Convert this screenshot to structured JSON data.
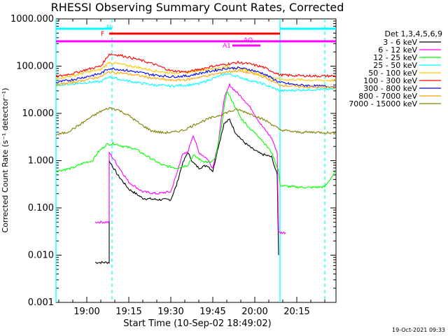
{
  "chart_data": {
    "type": "line",
    "title": "RHESSI Observing Summary Count Rates, Corrected",
    "xlabel": "Start Time (10-Sep-02 18:49:02)",
    "ylabel": "Corrected Count Rate (s⁻¹ detector⁻¹)",
    "yscale": "log",
    "ylim": [
      0.001,
      1000
    ],
    "xlim": [
      "18:49",
      "20:26"
    ],
    "y_ticks": [
      "1000.000",
      "100.000",
      "10.000",
      "1.000",
      "0.100",
      "0.010",
      "0.001"
    ],
    "x_ticks": [
      "19:00",
      "19:15",
      "19:30",
      "19:45",
      "20:00",
      "20:15"
    ],
    "x_tick_minutes": [
      660,
      675,
      690,
      705,
      720,
      735
    ],
    "legend_title": "Det 1,3,4,5,6,9",
    "stamp": "19-Oct-2021 09:33",
    "annotations": {
      "N": "N",
      "F": "F",
      "A1": "A1",
      "AQ": "AQ"
    },
    "spans": {
      "N": [
        [
          649,
          669
        ],
        [
          729,
          749
        ]
      ],
      "F": [
        [
          668,
          690
        ],
        [
          690,
          729
        ]
      ],
      "A_outer": [
        [
          649,
          749
        ]
      ],
      "AQ": [
        [
          712,
          720
        ],
        [
          717,
          722
        ]
      ]
    },
    "vlines": {
      "solid": [
        649,
        729
      ],
      "dashed": [
        669,
        745
      ]
    },
    "series": [
      {
        "name": "3 - 6 keV",
        "color": "#000000",
        "points": [
          [
            663,
            0.007
          ],
          [
            668,
            0.007
          ],
          [
            668,
            1.0
          ],
          [
            671,
            0.5
          ],
          [
            675,
            0.25
          ],
          [
            680,
            0.16
          ],
          [
            685,
            0.15
          ],
          [
            690,
            0.15
          ],
          [
            692,
            0.3
          ],
          [
            694,
            0.8
          ],
          [
            696,
            1.5
          ],
          [
            698,
            0.9
          ],
          [
            700,
            0.7
          ],
          [
            703,
            0.8
          ],
          [
            705,
            0.6
          ],
          [
            707,
            2
          ],
          [
            709,
            6
          ],
          [
            711,
            7.5
          ],
          [
            713,
            4
          ],
          [
            716,
            2.5
          ],
          [
            719,
            1.8
          ],
          [
            722,
            1.4
          ],
          [
            726,
            1.2
          ],
          [
            728,
            0.5
          ],
          [
            728.5,
            0.01
          ]
        ]
      },
      {
        "name": "6 - 12 keV",
        "color": "#ff00ff",
        "points": [
          [
            663,
            0.05
          ],
          [
            668,
            0.05
          ],
          [
            668,
            1.5
          ],
          [
            671,
            0.8
          ],
          [
            675,
            0.35
          ],
          [
            680,
            0.22
          ],
          [
            685,
            0.2
          ],
          [
            690,
            0.22
          ],
          [
            692,
            0.5
          ],
          [
            694,
            1.3
          ],
          [
            696,
            1.5
          ],
          [
            698,
            3.5
          ],
          [
            700,
            1.5
          ],
          [
            703,
            1.1
          ],
          [
            705,
            0.7
          ],
          [
            707,
            2.5
          ],
          [
            709,
            20
          ],
          [
            711,
            40
          ],
          [
            713,
            30
          ],
          [
            716,
            20
          ],
          [
            719,
            12
          ],
          [
            722,
            6
          ],
          [
            726,
            3
          ],
          [
            728,
            1.5
          ],
          [
            728.5,
            0.03
          ],
          [
            731,
            0.03
          ]
        ]
      },
      {
        "name": "12 - 25 keV",
        "color": "#00ff00",
        "points": [
          [
            649,
            0.6
          ],
          [
            655,
            0.7
          ],
          [
            659,
            0.9
          ],
          [
            662,
            1.0
          ],
          [
            664,
            1.5
          ],
          [
            667,
            2.2
          ],
          [
            670,
            2.3
          ],
          [
            673,
            2.0
          ],
          [
            677,
            1.8
          ],
          [
            682,
            1.2
          ],
          [
            687,
            0.8
          ],
          [
            692,
            0.7
          ],
          [
            696,
            0.8
          ],
          [
            698,
            1.3
          ],
          [
            701,
            1.0
          ],
          [
            704,
            0.9
          ],
          [
            706,
            1.1
          ],
          [
            708,
            5
          ],
          [
            710,
            30
          ],
          [
            712,
            18
          ],
          [
            715,
            8
          ],
          [
            718,
            5
          ],
          [
            722,
            3
          ],
          [
            726,
            1.5
          ],
          [
            728.5,
            0.6
          ],
          [
            729,
            0.3
          ],
          [
            733,
            0.28
          ],
          [
            740,
            0.27
          ],
          [
            745,
            0.28
          ],
          [
            749,
            0.6
          ]
        ]
      },
      {
        "name": "25 - 50 keV",
        "color": "#00ffff",
        "points": [
          [
            649,
            40
          ],
          [
            655,
            42
          ],
          [
            660,
            45
          ],
          [
            665,
            47
          ],
          [
            668,
            60
          ],
          [
            672,
            52
          ],
          [
            678,
            45
          ],
          [
            684,
            40
          ],
          [
            690,
            38
          ],
          [
            696,
            40
          ],
          [
            700,
            42
          ],
          [
            705,
            55
          ],
          [
            710,
            70
          ],
          [
            714,
            60
          ],
          [
            718,
            50
          ],
          [
            723,
            42
          ],
          [
            729,
            30
          ],
          [
            735,
            31
          ],
          [
            742,
            32
          ],
          [
            749,
            33
          ]
        ]
      },
      {
        "name": "50 - 100 keV",
        "color": "#ffc800",
        "points": [
          [
            649,
            55
          ],
          [
            655,
            62
          ],
          [
            660,
            75
          ],
          [
            665,
            85
          ],
          [
            668,
            120
          ],
          [
            672,
            110
          ],
          [
            678,
            95
          ],
          [
            684,
            80
          ],
          [
            690,
            72
          ],
          [
            696,
            75
          ],
          [
            700,
            82
          ],
          [
            705,
            88
          ],
          [
            710,
            95
          ],
          [
            714,
            90
          ],
          [
            718,
            80
          ],
          [
            723,
            65
          ],
          [
            729,
            52
          ],
          [
            735,
            52
          ],
          [
            742,
            50
          ],
          [
            749,
            50
          ]
        ]
      },
      {
        "name": "100 - 300 keV",
        "color": "#ff0000",
        "points": [
          [
            649,
            60
          ],
          [
            655,
            70
          ],
          [
            660,
            85
          ],
          [
            665,
            100
          ],
          [
            668,
            180
          ],
          [
            672,
            170
          ],
          [
            678,
            140
          ],
          [
            684,
            110
          ],
          [
            690,
            80
          ],
          [
            696,
            75
          ],
          [
            700,
            85
          ],
          [
            705,
            100
          ],
          [
            710,
            110
          ],
          [
            714,
            120
          ],
          [
            718,
            112
          ],
          [
            723,
            95
          ],
          [
            729,
            65
          ],
          [
            735,
            63
          ],
          [
            742,
            62
          ],
          [
            749,
            62
          ]
        ]
      },
      {
        "name": "300 - 800 keV",
        "color": "#0000ff",
        "points": [
          [
            649,
            45
          ],
          [
            655,
            52
          ],
          [
            660,
            60
          ],
          [
            665,
            70
          ],
          [
            668,
            90
          ],
          [
            672,
            85
          ],
          [
            678,
            75
          ],
          [
            684,
            65
          ],
          [
            690,
            60
          ],
          [
            696,
            62
          ],
          [
            700,
            70
          ],
          [
            705,
            80
          ],
          [
            710,
            90
          ],
          [
            714,
            92
          ],
          [
            718,
            85
          ],
          [
            723,
            70
          ],
          [
            729,
            45
          ],
          [
            735,
            40
          ],
          [
            742,
            38
          ],
          [
            749,
            37
          ]
        ]
      },
      {
        "name": "800 - 7000 keV",
        "color": "#ffa500",
        "points": [
          [
            649,
            40
          ],
          [
            655,
            45
          ],
          [
            660,
            52
          ],
          [
            665,
            60
          ],
          [
            668,
            75
          ],
          [
            672,
            72
          ],
          [
            678,
            64
          ],
          [
            684,
            55
          ],
          [
            690,
            50
          ],
          [
            696,
            52
          ],
          [
            700,
            58
          ],
          [
            705,
            66
          ],
          [
            710,
            76
          ],
          [
            714,
            80
          ],
          [
            718,
            72
          ],
          [
            723,
            60
          ],
          [
            729,
            40
          ],
          [
            735,
            37
          ],
          [
            742,
            36
          ],
          [
            749,
            35
          ]
        ]
      },
      {
        "name": "7000 - 15000 keV",
        "color": "#808000",
        "points": [
          [
            649,
            3.5
          ],
          [
            653,
            4
          ],
          [
            657,
            5.5
          ],
          [
            661,
            8
          ],
          [
            665,
            11
          ],
          [
            668,
            13
          ],
          [
            671,
            12
          ],
          [
            675,
            9
          ],
          [
            679,
            6
          ],
          [
            683,
            4.3
          ],
          [
            687,
            3.9
          ],
          [
            691,
            4
          ],
          [
            695,
            4.5
          ],
          [
            699,
            6
          ],
          [
            703,
            7.5
          ],
          [
            707,
            9
          ],
          [
            711,
            11
          ],
          [
            714,
            12
          ],
          [
            717,
            10.5
          ],
          [
            721,
            8.5
          ],
          [
            725,
            6.5
          ],
          [
            729,
            4.5
          ],
          [
            735,
            4
          ],
          [
            742,
            4
          ],
          [
            749,
            3.8
          ]
        ]
      }
    ]
  }
}
